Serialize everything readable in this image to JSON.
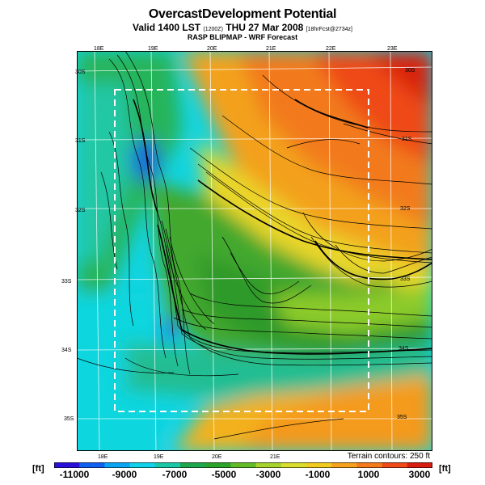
{
  "header": {
    "title": "OvercastDevelopment Potential",
    "valid_main": "Valid 1400 LST",
    "valid_small": "(1200Z)",
    "valid_date": "THU 27 Mar 2008",
    "valid_fcst": "[18hrFcst@2734z]",
    "source": "RASP BLIPMAP - WRF Forecast"
  },
  "map": {
    "lon_labels_top": [
      "18E",
      "19E",
      "20E",
      "21E",
      "22E",
      "23E"
    ],
    "lon_labels_bottom": [
      "18E",
      "19E",
      "20E",
      "21E"
    ],
    "lat_labels_left": [
      "30S",
      "31S",
      "32S",
      "33S",
      "34S",
      "35S"
    ],
    "lat_labels_right": [
      "30S",
      "31S",
      "32S",
      "33S",
      "34S",
      "35S"
    ],
    "terrain_note": "Terrain contours: 250 ft"
  },
  "legend": {
    "unit_left": "[ft]",
    "unit_right": "[ft]",
    "labels": [
      "-11000",
      "-9000",
      "-7000",
      "-5000",
      "-3000",
      "-1000",
      "1000",
      "3000"
    ],
    "colors": [
      "#2a10d8",
      "#1160f2",
      "#0aa4f5",
      "#10d2e8",
      "#19c9a6",
      "#1ea84e",
      "#2ca32d",
      "#64bb2a",
      "#a6d42d",
      "#d9dd2d",
      "#f1cc1e",
      "#f7a21c",
      "#f57a1a",
      "#ef4a18",
      "#d81d12"
    ]
  }
}
